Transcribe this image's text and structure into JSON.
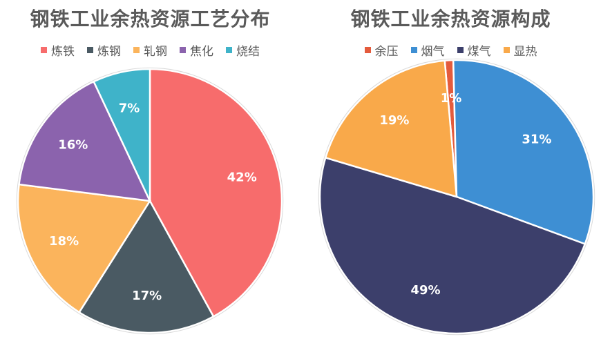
{
  "chart_data": [
    {
      "type": "pie",
      "title": "钢铁工业余热资源工艺分布",
      "legend": "top",
      "categories": [
        "炼铁",
        "炼钢",
        "轧钢",
        "焦化",
        "烧结"
      ],
      "values": [
        42,
        17,
        18,
        16,
        7
      ],
      "labels": [
        "42%",
        "17%",
        "18%",
        "16%",
        "7%"
      ],
      "colors": [
        "#f76c6c",
        "#4a5a63",
        "#fbb45c",
        "#8b63ad",
        "#3fb3c9"
      ]
    },
    {
      "type": "pie",
      "title": "钢铁工业余热资源构成",
      "legend": "top",
      "categories": [
        "余压",
        "烟气",
        "煤气",
        "显热"
      ],
      "values": [
        1,
        31,
        49,
        19
      ],
      "labels": [
        "1%",
        "31%",
        "49%",
        "19%"
      ],
      "colors": [
        "#e45b3c",
        "#3e8fd3",
        "#3c3f6b",
        "#f9a94a"
      ]
    }
  ]
}
